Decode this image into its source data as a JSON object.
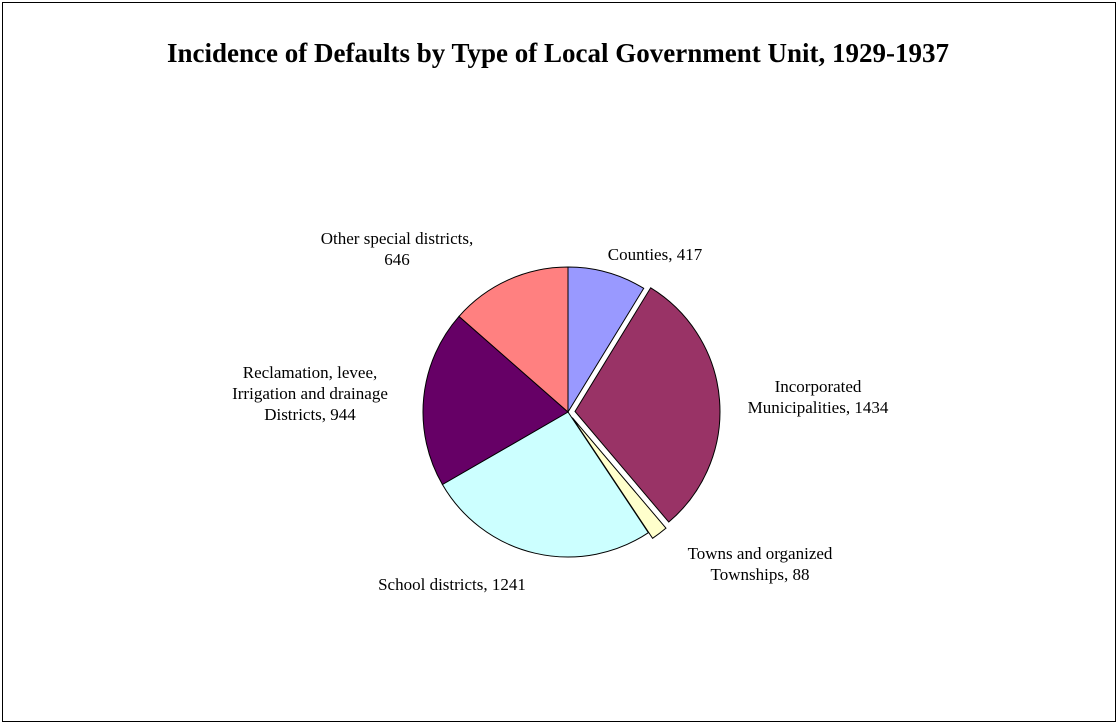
{
  "chart_data": {
    "type": "pie",
    "title": "Incidence of Defaults by Type of Local Government Unit, 1929-1937",
    "slices": [
      {
        "label_lines": [
          "Counties, 417"
        ],
        "value": 417,
        "color": "#9999ff"
      },
      {
        "label_lines": [
          "Incorporated",
          "Municipalities, 1434"
        ],
        "value": 1434,
        "color": "#993366",
        "exploded": true
      },
      {
        "label_lines": [
          "Towns and organized",
          "Townships, 88"
        ],
        "value": 88,
        "color": "#ffffcc",
        "exploded": true
      },
      {
        "label_lines": [
          "School districts, 1241"
        ],
        "value": 1241,
        "color": "#ccffff"
      },
      {
        "label_lines": [
          "Reclamation, levee,",
          "Irrigation and drainage",
          "Districts, 944"
        ],
        "value": 944,
        "color": "#660066"
      },
      {
        "label_lines": [
          "Other special districts,",
          "646"
        ],
        "value": 646,
        "color": "#ff8080"
      }
    ],
    "start_angle_deg": 0,
    "direction": "clockwise",
    "legend": "none"
  }
}
